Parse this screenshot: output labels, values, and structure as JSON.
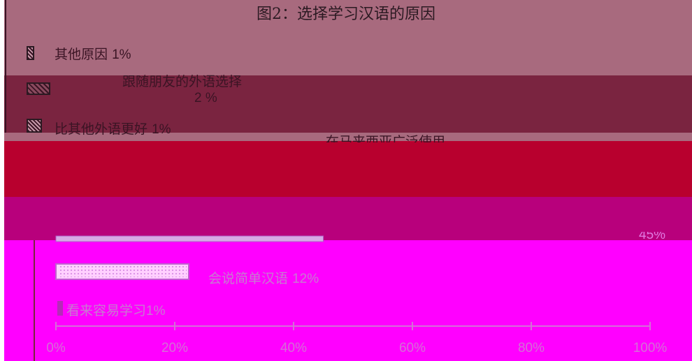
{
  "chart_data": {
    "type": "bar",
    "title": "图2：选择学习汉语的原因",
    "orientation": "horizontal",
    "xlim": [
      0,
      100
    ],
    "x_unit": "%",
    "x_ticks": [
      "0%",
      "20%",
      "40%",
      "60%",
      "80%",
      "100%"
    ],
    "categories": [
      "其他原因",
      "跟随朋友的外语选择",
      "比其他外语更好",
      "在马来西亚广泛使用",
      "",
      "",
      "会说简单汉语",
      "看来容易学习"
    ],
    "values": [
      1,
      2,
      1,
      null,
      null,
      45,
      12,
      1
    ],
    "labels": [
      {
        "text": "其他原因",
        "value": "1%"
      },
      {
        "text": "跟随朋友的外语选择",
        "value": "2 %"
      },
      {
        "text": "比其他外语更好",
        "value": "1%"
      },
      {
        "text": "在马来西亚广泛使用",
        "value": ""
      },
      {
        "text": "",
        "value": ""
      },
      {
        "text": "",
        "value": "45%"
      },
      {
        "text": "会说简单汉语",
        "value": "12%"
      },
      {
        "text": "看来容易学习",
        "value": "1%"
      }
    ],
    "colors": {
      "band_top": "#a86a7e",
      "band_dark": "#7a2440",
      "band_mid": "#a86a7e",
      "band_red": "#b8002e",
      "band_purple": "#b8007c",
      "band_magenta": "#ff00ff",
      "bar_fill": "#d7a8e6"
    }
  }
}
